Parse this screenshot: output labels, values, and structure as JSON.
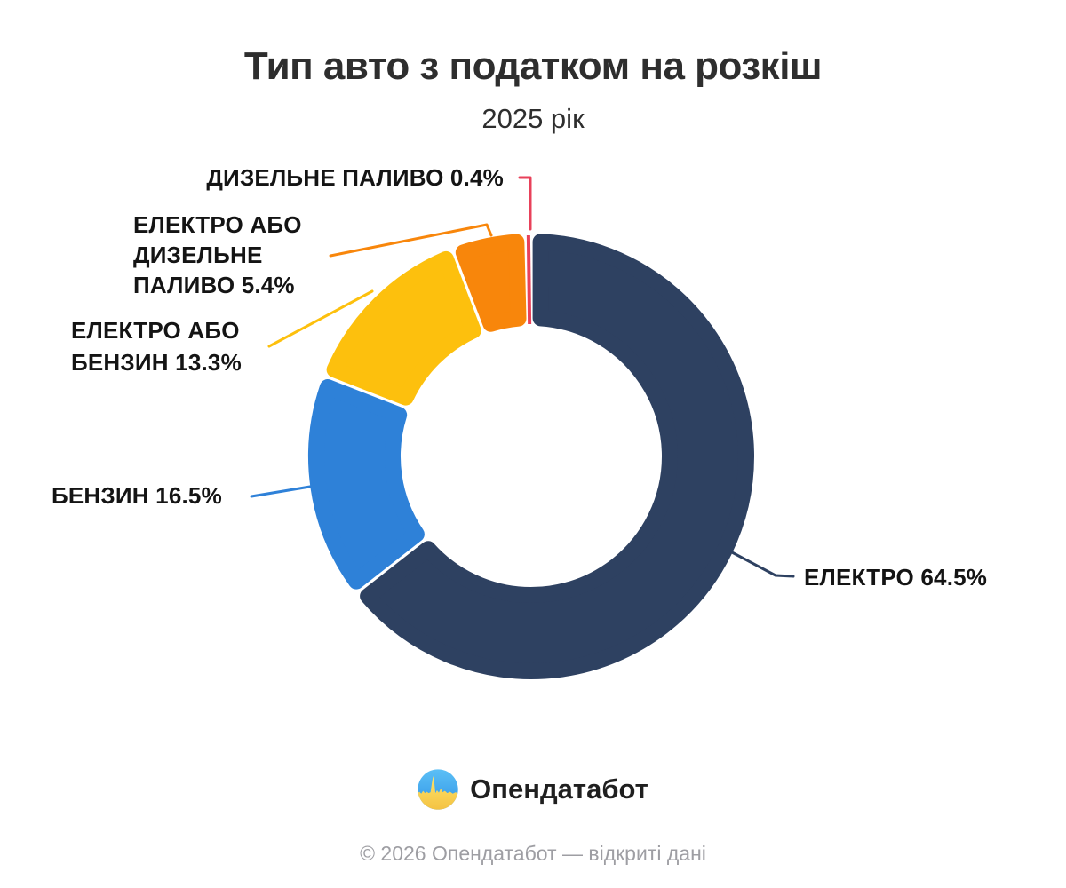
{
  "title": "Тип авто з податком на розкіш",
  "subtitle": "2025 рік",
  "chart_data": {
    "type": "pie",
    "variant": "donut",
    "title": "Тип авто з податком на розкіш",
    "subtitle": "2025 рік",
    "unit": "%",
    "direction": "clockwise",
    "start_angle_deg": 0,
    "inner_radius_ratio": 0.585,
    "legend_position": "callout-labels",
    "grid": false,
    "slices": [
      {
        "name": "ЕЛЕКТРО",
        "value": 64.5,
        "color": "#2e4161",
        "label_lines": [
          "ЕЛЕКТРО 64.5%"
        ]
      },
      {
        "name": "БЕНЗИН",
        "value": 16.5,
        "color": "#2e81d8",
        "label_lines": [
          "БЕНЗИН 16.5%"
        ]
      },
      {
        "name": "ЕЛЕКТРО АБО БЕНЗИН",
        "value": 13.3,
        "color": "#fdc00d",
        "label_lines": [
          "ЕЛЕКТРО АБО",
          "БЕНЗИН 13.3%"
        ]
      },
      {
        "name": "ЕЛЕКТРО АБО ДИЗЕЛЬНЕ ПАЛИВО",
        "value": 5.4,
        "color": "#f8860b",
        "label_lines": [
          "ЕЛЕКТРО АБО",
          "ДИЗЕЛЬНЕ",
          "ПАЛИВО 5.4%"
        ]
      },
      {
        "name": "ДИЗЕЛЬНЕ ПАЛИВО",
        "value": 0.4,
        "color": "#e8415a",
        "label_lines": [
          "ДИЗЕЛЬНЕ ПАЛИВО 0.4%"
        ]
      }
    ]
  },
  "logo": {
    "text": "Опендатабот"
  },
  "footer": {
    "text": "© 2026 Опендатабот — відкриті дані"
  }
}
